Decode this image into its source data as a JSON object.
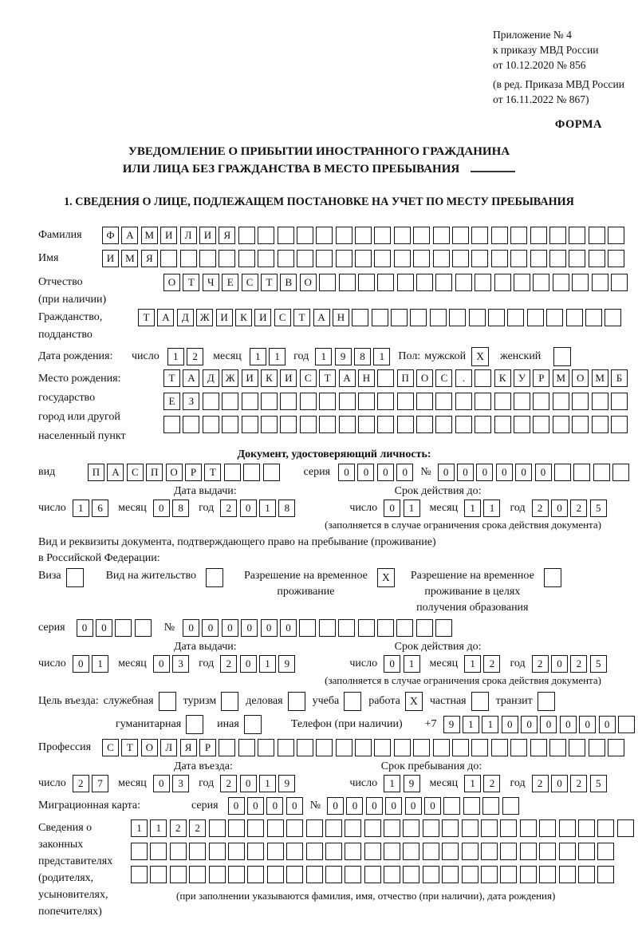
{
  "annex": {
    "line1": "Приложение № 4",
    "line2": "к приказу МВД России",
    "line3": "от 10.12.2020 № 856",
    "line4": "(в ред. Приказа МВД России",
    "line5": "от 16.11.2022 № 867)"
  },
  "form_label": "ФОРМА",
  "title": {
    "line1": "УВЕДОМЛЕНИЕ О ПРИБЫТИИ ИНОСТРАННОГО ГРАЖДАНИНА",
    "line2": "ИЛИ ЛИЦА БЕЗ ГРАЖДАНСТВА В МЕСТО ПРЕБЫВАНИЯ"
  },
  "section1_heading": "1. СВЕДЕНИЯ О ЛИЦЕ, ПОДЛЕЖАЩЕМ ПОСТАНОВКЕ НА УЧЕТ ПО МЕСТУ ПРЕБЫВАНИЯ",
  "date_words": {
    "day": "число",
    "month": "месяц",
    "year": "год"
  },
  "date_section_labels": {
    "issue": "Дата выдачи:",
    "expiry": "Срок действия до:",
    "entry": "Дата въезда:",
    "stay": "Срок пребывания до:",
    "restriction_note": "(заполняется в случае ограничения срока действия документа)"
  },
  "surname": {
    "label": "Фамилия",
    "cells": [
      "Ф",
      "А",
      "М",
      "И",
      "Л",
      "И",
      "Я",
      "",
      "",
      "",
      "",
      "",
      "",
      "",
      "",
      "",
      "",
      "",
      "",
      "",
      "",
      "",
      "",
      "",
      "",
      "",
      ""
    ]
  },
  "given_name": {
    "label": "Имя",
    "cells": [
      "И",
      "М",
      "Я",
      "",
      "",
      "",
      "",
      "",
      "",
      "",
      "",
      "",
      "",
      "",
      "",
      "",
      "",
      "",
      "",
      "",
      "",
      "",
      "",
      "",
      "",
      "",
      ""
    ]
  },
  "patronymic": {
    "label": "Отчество",
    "label2": "(при наличии)",
    "cells": [
      "О",
      "Т",
      "Ч",
      "Е",
      "С",
      "Т",
      "В",
      "О",
      "",
      "",
      "",
      "",
      "",
      "",
      "",
      "",
      "",
      "",
      "",
      "",
      "",
      "",
      "",
      ""
    ]
  },
  "citizenship": {
    "label": "Гражданство,",
    "label2": "подданство",
    "cells": [
      "Т",
      "А",
      "Д",
      "Ж",
      "И",
      "К",
      "И",
      "С",
      "Т",
      "А",
      "Н",
      "",
      "",
      "",
      "",
      "",
      "",
      "",
      "",
      "",
      "",
      "",
      "",
      "",
      ""
    ]
  },
  "birth_date": {
    "label": "Дата рождения:",
    "day": [
      "1",
      "2"
    ],
    "month": [
      "1",
      "1"
    ],
    "year": [
      "1",
      "9",
      "8",
      "1"
    ]
  },
  "gender": {
    "label": "Пол:",
    "male_label": "мужской",
    "male_value": "X",
    "female_label": "женский",
    "female_value": ""
  },
  "birth_place": {
    "label1": "Место рождения:",
    "label2": "государство",
    "label3": "город или другой",
    "label4": "населенный пункт",
    "row1": [
      "Т",
      "А",
      "Д",
      "Ж",
      "И",
      "К",
      "И",
      "С",
      "Т",
      "А",
      "Н",
      "",
      "П",
      "О",
      "С",
      ".",
      "",
      "К",
      "У",
      "Р",
      "М",
      "О",
      "М",
      "Б"
    ],
    "row2": [
      "Е",
      "З",
      "",
      "",
      "",
      "",
      "",
      "",
      "",
      "",
      "",
      "",
      "",
      "",
      "",
      "",
      "",
      "",
      "",
      "",
      "",
      "",
      "",
      ""
    ],
    "row3": [
      "",
      "",
      "",
      "",
      "",
      "",
      "",
      "",
      "",
      "",
      "",
      "",
      "",
      "",
      "",
      "",
      "",
      "",
      "",
      "",
      "",
      "",
      "",
      ""
    ]
  },
  "identity_doc": {
    "heading": "Документ, удостоверяющий личность:",
    "kind_label": "вид",
    "kind": [
      "П",
      "А",
      "С",
      "П",
      "О",
      "Р",
      "Т",
      "",
      "",
      ""
    ],
    "series_label": "серия",
    "series": [
      "0",
      "0",
      "0",
      "0"
    ],
    "number_label": "№",
    "number": [
      "0",
      "0",
      "0",
      "0",
      "0",
      "0",
      "",
      "",
      "",
      ""
    ],
    "issue": {
      "day": [
        "1",
        "6"
      ],
      "month": [
        "0",
        "8"
      ],
      "year": [
        "2",
        "0",
        "1",
        "8"
      ]
    },
    "expiry": {
      "day": [
        "0",
        "1"
      ],
      "month": [
        "1",
        "1"
      ],
      "year": [
        "2",
        "0",
        "2",
        "5"
      ]
    }
  },
  "residence_doc": {
    "line1": "Вид и реквизиты документа, подтверждающего право на пребывание (проживание)",
    "line2": "в Российской Федерации:",
    "options": [
      {
        "label1": "Виза",
        "value": ""
      },
      {
        "label1": "Вид на жительство",
        "value": ""
      },
      {
        "label1": "Разрешение на временное",
        "label2": "проживание",
        "value": "X"
      },
      {
        "label1": "Разрешение на временное",
        "label2": "проживание в целях",
        "label3": "получения образования",
        "value": ""
      }
    ],
    "series_label": "серия",
    "series": [
      "0",
      "0",
      "",
      ""
    ],
    "number_label": "№",
    "number": [
      "0",
      "0",
      "0",
      "0",
      "0",
      "0",
      "",
      "",
      "",
      "",
      "",
      "",
      "",
      ""
    ],
    "issue": {
      "day": [
        "0",
        "1"
      ],
      "month": [
        "0",
        "3"
      ],
      "year": [
        "2",
        "0",
        "1",
        "9"
      ]
    },
    "expiry": {
      "day": [
        "0",
        "1"
      ],
      "month": [
        "1",
        "2"
      ],
      "year": [
        "2",
        "0",
        "2",
        "5"
      ]
    }
  },
  "purpose": {
    "label": "Цель въезда:",
    "options_row1": [
      {
        "label": "служебная",
        "value": ""
      },
      {
        "label": "туризм",
        "value": ""
      },
      {
        "label": "деловая",
        "value": ""
      },
      {
        "label": "учеба",
        "value": ""
      },
      {
        "label": "работа",
        "value": "X"
      },
      {
        "label": "частная",
        "value": ""
      },
      {
        "label": "транзит",
        "value": ""
      }
    ],
    "options_row2": [
      {
        "label": "гуманитарная",
        "value": ""
      },
      {
        "label": "иная",
        "value": ""
      }
    ]
  },
  "phone": {
    "label": "Телефон (при наличии)",
    "prefix": "+7",
    "cells": [
      "9",
      "1",
      "1",
      "0",
      "0",
      "0",
      "0",
      "0",
      "0",
      ""
    ]
  },
  "profession": {
    "label": "Профессия",
    "cells": [
      "С",
      "Т",
      "О",
      "Л",
      "Я",
      "Р",
      "",
      "",
      "",
      "",
      "",
      "",
      "",
      "",
      "",
      "",
      "",
      "",
      "",
      "",
      "",
      "",
      "",
      "",
      "",
      "",
      ""
    ]
  },
  "entry_date": {
    "day": [
      "2",
      "7"
    ],
    "month": [
      "0",
      "3"
    ],
    "year": [
      "2",
      "0",
      "1",
      "9"
    ]
  },
  "stay_until": {
    "day": [
      "1",
      "9"
    ],
    "month": [
      "1",
      "2"
    ],
    "year": [
      "2",
      "0",
      "2",
      "5"
    ]
  },
  "migration_card": {
    "label": "Миграционная карта:",
    "series_label": "серия",
    "series": [
      "0",
      "0",
      "0",
      "0"
    ],
    "number_label": "№",
    "number": [
      "0",
      "0",
      "0",
      "0",
      "0",
      "0",
      "",
      "",
      "",
      ""
    ]
  },
  "representatives": {
    "label_lines": [
      "Сведения о",
      "законных",
      "представителях",
      "(родителях,",
      "усыновителях,",
      "попечителях)"
    ],
    "row1": [
      "1",
      "1",
      "2",
      "2",
      "",
      "",
      "",
      "",
      "",
      "",
      "",
      "",
      "",
      "",
      "",
      "",
      "",
      "",
      "",
      "",
      "",
      "",
      "",
      "",
      "",
      ""
    ],
    "row2": [
      "",
      "",
      "",
      "",
      "",
      "",
      "",
      "",
      "",
      "",
      "",
      "",
      "",
      "",
      "",
      "",
      "",
      "",
      "",
      "",
      "",
      "",
      "",
      "",
      ""
    ],
    "row3": [
      "",
      "",
      "",
      "",
      "",
      "",
      "",
      "",
      "",
      "",
      "",
      "",
      "",
      "",
      "",
      "",
      "",
      "",
      "",
      "",
      "",
      "",
      "",
      "",
      ""
    ],
    "note": "(при заполнении указываются фамилия, имя, отчество (при наличии), дата рождения)"
  }
}
